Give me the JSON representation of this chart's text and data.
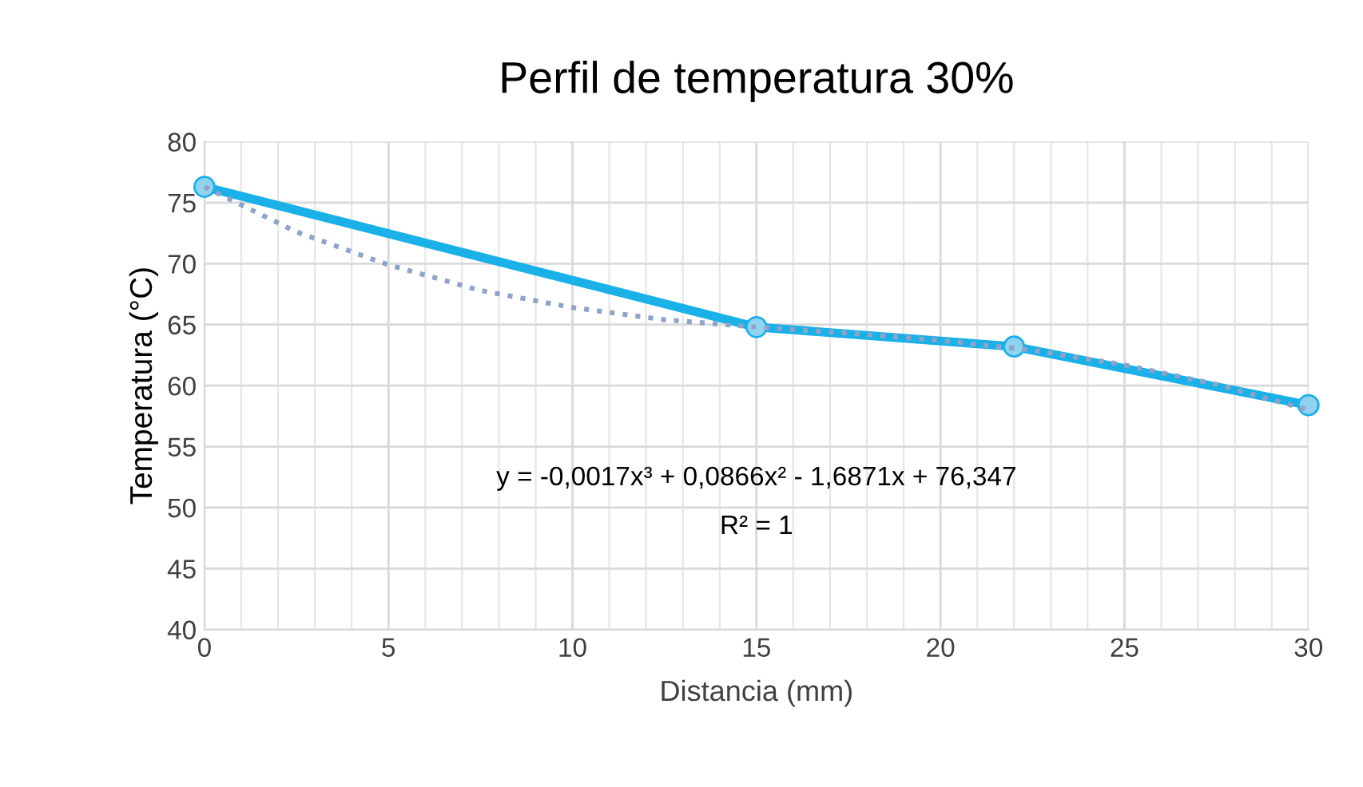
{
  "chart_data": {
    "type": "line",
    "title": "Perfil de temperatura 30%",
    "xlabel": "Distancia (mm)",
    "ylabel": "Temperatura (°C)",
    "xlim": [
      0,
      30
    ],
    "xticks": [
      0,
      5,
      10,
      15,
      20,
      25,
      30
    ],
    "ylim": [
      40,
      80
    ],
    "yticks": [
      40,
      45,
      50,
      55,
      60,
      65,
      70,
      75,
      80
    ],
    "grid": true,
    "series": [
      {
        "color": "#1ab0e8",
        "x": [
          0,
          15,
          22,
          30
        ],
        "values": [
          76.3,
          64.8,
          63.2,
          58.4
        ],
        "marker": "circle",
        "line_style": "solid"
      },
      {
        "color": "#8fa3c9",
        "x": [
          0,
          2.5,
          5,
          7.5,
          10,
          12.5,
          15,
          17.5,
          20,
          22.5,
          25,
          27.5,
          30
        ],
        "values": [
          76.3,
          72.6,
          69.9,
          67.8,
          66.4,
          65.4,
          64.8,
          64.3,
          63.7,
          62.9,
          61.7,
          60.1,
          58.0
        ],
        "marker": "none",
        "line_style": "dotted"
      }
    ],
    "annotations": [
      "y = -0,0017x³ + 0,0866x² - 1,6871x + 76,347",
      "R² = 1"
    ]
  }
}
